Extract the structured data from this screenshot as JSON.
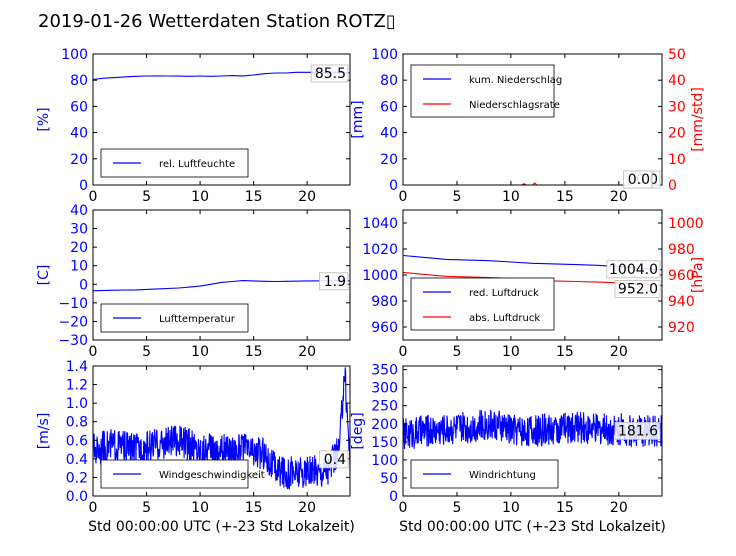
{
  "title": "2019-01-26 Wetterdaten Station ROTZ▯",
  "colors": {
    "left_axis": "#0000ff",
    "right_axis": "#ff0000",
    "text": "#000000"
  },
  "chart_data": [
    {
      "type": "line",
      "xlabel": "",
      "ylabel": "[%]",
      "xlim": [
        0,
        24
      ],
      "ylim": [
        0,
        100
      ],
      "x_ticks": [
        0,
        5,
        10,
        15,
        20
      ],
      "y_ticks": [
        0,
        20,
        40,
        60,
        80,
        100
      ],
      "legend": [
        "rel. Luftfeuchte"
      ],
      "legend_placement": "lower-left",
      "annotation": "85.5",
      "series": [
        {
          "name": "rel. Luftfeuchte",
          "axis": "left",
          "color": "#0000ff",
          "x": [
            0,
            1,
            2,
            3,
            4,
            5,
            6,
            7,
            8,
            9,
            10,
            11,
            12,
            13,
            14,
            15,
            16,
            17,
            18,
            19,
            20,
            21,
            22,
            23,
            24
          ],
          "y": [
            80.5,
            81.5,
            82,
            82.5,
            83,
            83.2,
            83.3,
            83.2,
            83.1,
            83,
            83.2,
            83,
            83.2,
            83.5,
            83.3,
            84,
            85,
            85.5,
            85.5,
            86,
            86,
            86,
            86,
            86,
            85.5
          ]
        }
      ]
    },
    {
      "type": "line",
      "xlabel": "",
      "ylabel": "[mm]",
      "ylabel_right": "[mm/std]",
      "xlim": [
        0,
        24
      ],
      "ylim": [
        0,
        100
      ],
      "ylim_right": [
        0,
        50
      ],
      "x_ticks": [
        0,
        5,
        10,
        15,
        20
      ],
      "y_ticks": [
        0,
        20,
        40,
        60,
        80,
        100
      ],
      "y_ticks_right": [
        0,
        10,
        20,
        30,
        40,
        50
      ],
      "legend": [
        "kum. Niederschlag",
        "Niederschlagsrate"
      ],
      "legend_placement": "upper-left",
      "annotation": "0.0",
      "annotation_right": "0.0",
      "series": [
        {
          "name": "kum. Niederschlag",
          "axis": "left",
          "color": "#0000ff",
          "x": [
            0,
            24
          ],
          "y": [
            0,
            0
          ]
        },
        {
          "name": "Niederschlagsrate",
          "axis": "right",
          "color": "#ff0000",
          "x": [
            0,
            11,
            11.2,
            11.4,
            12,
            12.2,
            12.4,
            24
          ],
          "y": [
            0,
            0,
            0.5,
            0,
            0,
            0.8,
            0,
            0
          ]
        }
      ]
    },
    {
      "type": "line",
      "xlabel": "",
      "ylabel": "[C]",
      "xlim": [
        0,
        24
      ],
      "ylim": [
        -30,
        40
      ],
      "x_ticks": [
        0,
        5,
        10,
        15,
        20
      ],
      "y_ticks": [
        -30,
        -20,
        -10,
        0,
        10,
        20,
        30,
        40
      ],
      "legend": [
        "Lufttemperatur"
      ],
      "legend_placement": "lower-left",
      "annotation": "1.9",
      "series": [
        {
          "name": "Lufttemperatur",
          "axis": "left",
          "color": "#0000ff",
          "x": [
            0,
            2,
            4,
            6,
            8,
            9,
            10,
            11,
            12,
            13,
            14,
            15,
            16,
            17,
            18,
            20,
            22,
            24
          ],
          "y": [
            -3.5,
            -3.2,
            -3,
            -2.5,
            -2,
            -1.5,
            -1,
            0,
            1,
            1.5,
            2,
            1.8,
            1.6,
            1.5,
            1.6,
            1.8,
            1.9,
            1.9
          ]
        }
      ]
    },
    {
      "type": "line",
      "xlabel": "",
      "ylabel": "",
      "ylabel_right": "[hPa]",
      "xlim": [
        0,
        24
      ],
      "ylim": [
        950,
        1050
      ],
      "ylim_right": [
        910,
        1010
      ],
      "x_ticks": [
        0,
        5,
        10,
        15,
        20
      ],
      "y_ticks": [
        960,
        980,
        1000,
        1020,
        1040
      ],
      "y_ticks_right": [
        920,
        940,
        960,
        980,
        1000
      ],
      "legend": [
        "red. Luftdruck",
        "abs. Luftdruck"
      ],
      "legend_placement": "lower-left",
      "annotation": "1004.0",
      "annotation_right": "952.0",
      "series": [
        {
          "name": "red. Luftdruck",
          "axis": "left",
          "color": "#0000ff",
          "x": [
            0,
            2,
            4,
            6,
            8,
            10,
            12,
            14,
            16,
            18,
            20,
            22,
            24
          ],
          "y": [
            1015,
            1013.5,
            1012,
            1011.5,
            1011,
            1010,
            1009,
            1008.5,
            1008,
            1007.5,
            1006.5,
            1005,
            1004
          ]
        },
        {
          "name": "abs. Luftdruck",
          "axis": "right",
          "color": "#ff0000",
          "x": [
            0,
            2,
            4,
            6,
            8,
            10,
            12,
            14,
            16,
            18,
            20,
            22,
            24
          ],
          "y": [
            962,
            960.5,
            959,
            958.5,
            958,
            957.5,
            956.5,
            955.5,
            955,
            954.5,
            954,
            953,
            952
          ]
        }
      ]
    },
    {
      "type": "line",
      "xlabel": "Std 00:00:00 UTC (+-23 Std Lokalzeit)",
      "ylabel": "[m/s]",
      "xlim": [
        0,
        24
      ],
      "ylim": [
        0,
        1.4
      ],
      "x_ticks": [
        0,
        5,
        10,
        15,
        20
      ],
      "y_ticks": [
        0.0,
        0.2,
        0.4,
        0.6,
        0.8,
        1.0,
        1.2,
        1.4
      ],
      "legend": [
        "Windgeschwindigkeit"
      ],
      "legend_placement": "lower-left",
      "annotation": "0.4",
      "noisy": true,
      "series": [
        {
          "name": "Windgeschwindigkeit",
          "axis": "left",
          "color": "#0000ff",
          "x": [
            0,
            2,
            4,
            6,
            8,
            10,
            12,
            14,
            16,
            17,
            18,
            20,
            22,
            23,
            23.5,
            24
          ],
          "y": [
            0.5,
            0.55,
            0.5,
            0.55,
            0.6,
            0.5,
            0.5,
            0.5,
            0.45,
            0.3,
            0.25,
            0.25,
            0.3,
            0.5,
            1.38,
            0.4
          ],
          "noise": 0.18
        }
      ]
    },
    {
      "type": "line",
      "xlabel": "Std 00:00:00 UTC (+-23 Std Lokalzeit)",
      "ylabel": "[deg]",
      "xlim": [
        0,
        24
      ],
      "ylim": [
        0,
        360
      ],
      "x_ticks": [
        0,
        5,
        10,
        15,
        20
      ],
      "y_ticks": [
        0,
        50,
        100,
        150,
        200,
        250,
        300,
        350
      ],
      "legend": [
        "Windrichtung"
      ],
      "legend_placement": "lower-left",
      "annotation": "181.6",
      "noisy": true,
      "series": [
        {
          "name": "Windrichtung",
          "axis": "left",
          "color": "#0000ff",
          "x": [
            0,
            2,
            4,
            6,
            8,
            10,
            12,
            14,
            16,
            18,
            20,
            22,
            24
          ],
          "y": [
            170,
            180,
            185,
            190,
            200,
            185,
            180,
            185,
            190,
            185,
            185,
            180,
            181.6
          ],
          "noise": 45
        }
      ]
    }
  ]
}
